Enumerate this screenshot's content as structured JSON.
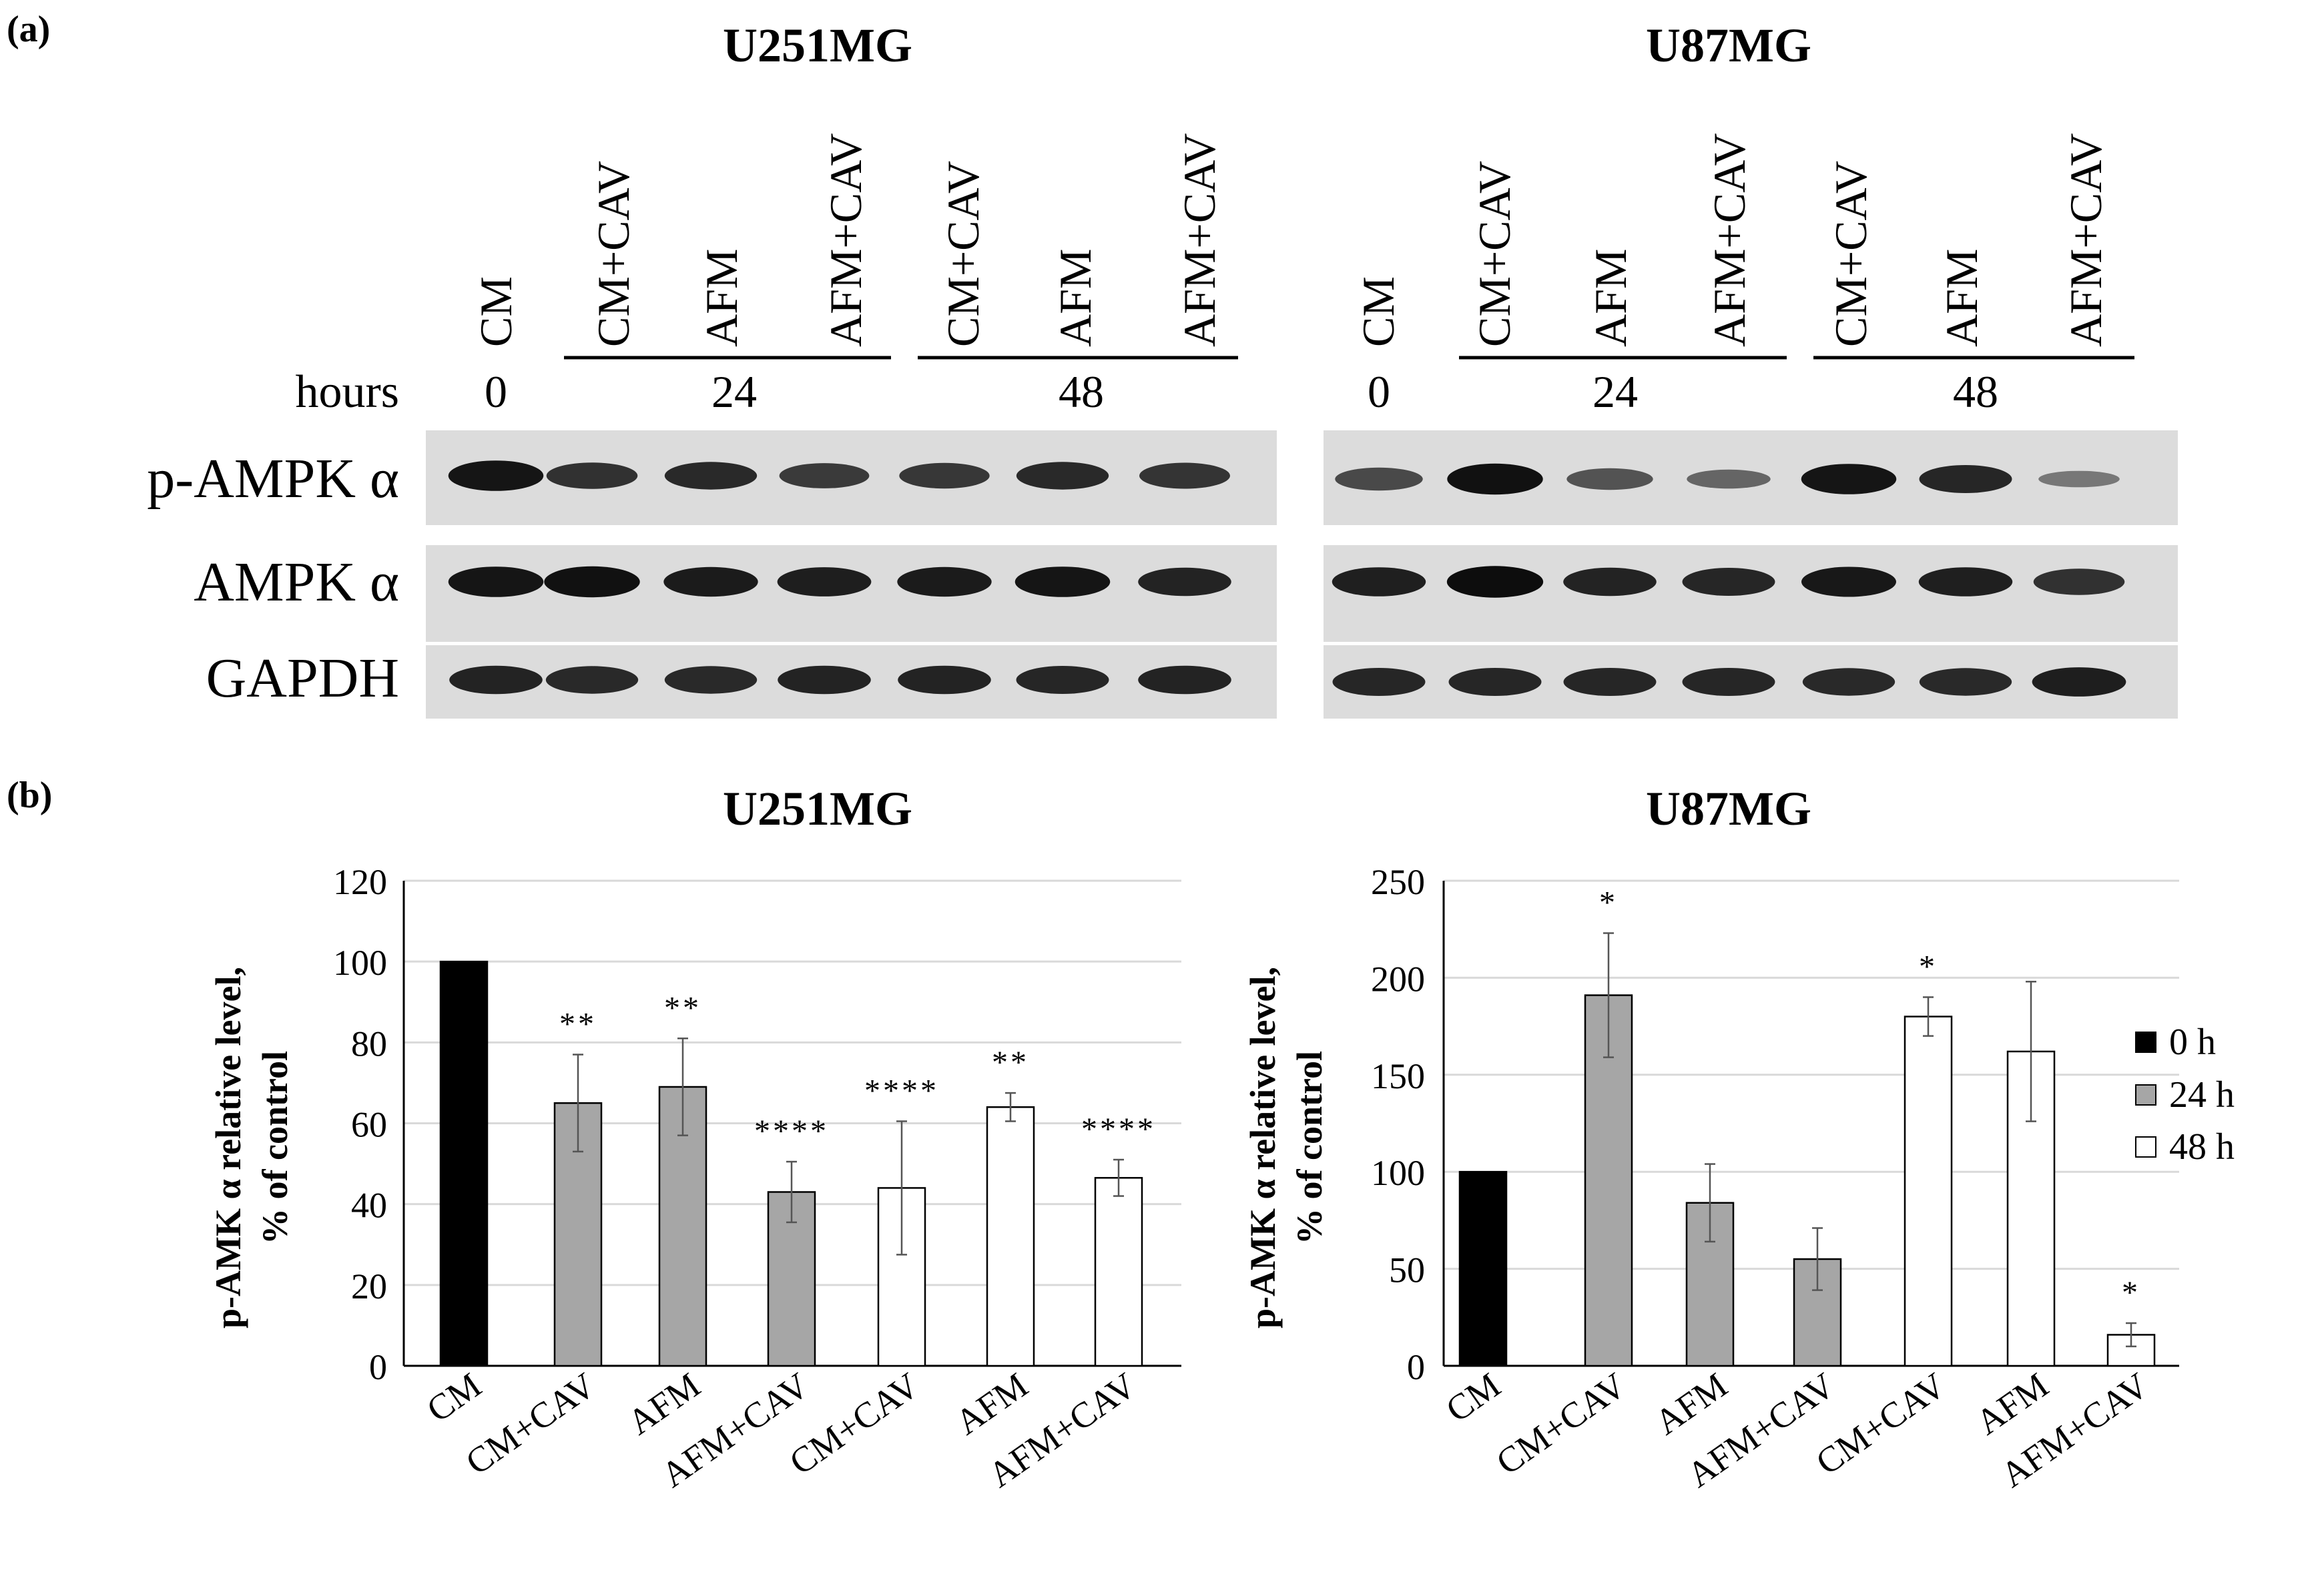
{
  "panel_a": {
    "label": "(a)",
    "row_labels": [
      "p-AMPK α",
      "AMPK α",
      "GAPDH"
    ],
    "hours_label": "hours",
    "blots": [
      {
        "title": "U251MG",
        "lanes": [
          "CM",
          "CM+CAV",
          "AFM",
          "AFM+CAV",
          "CM+CAV",
          "AFM",
          "AFM+CAV"
        ],
        "hours": [
          "0",
          "24",
          "48"
        ],
        "band_intensity": [
          [
            0.92,
            0.72,
            0.78,
            0.66,
            0.68,
            0.78,
            0.7
          ],
          [
            0.92,
            0.95,
            0.88,
            0.86,
            0.88,
            0.92,
            0.82
          ],
          [
            0.82,
            0.78,
            0.78,
            0.82,
            0.82,
            0.8,
            0.82
          ]
        ]
      },
      {
        "title": "U87MG",
        "lanes": [
          "CM",
          "CM+CAV",
          "AFM",
          "AFM+CAV",
          "CM+CAV",
          "AFM",
          "AFM+CAV"
        ],
        "hours": [
          "0",
          "24",
          "48"
        ],
        "band_intensity": [
          [
            0.55,
            0.95,
            0.48,
            0.35,
            0.92,
            0.8,
            0.22
          ],
          [
            0.85,
            0.98,
            0.82,
            0.8,
            0.9,
            0.85,
            0.72
          ],
          [
            0.8,
            0.8,
            0.8,
            0.8,
            0.78,
            0.78,
            0.86
          ]
        ]
      }
    ]
  },
  "panel_b": {
    "label": "(b)",
    "legend": [
      {
        "label": "0 h",
        "color": "#000000"
      },
      {
        "label": "24 h",
        "color": "#a6a6a6"
      },
      {
        "label": "48 h",
        "color": "#ffffff"
      }
    ]
  },
  "chart_data": [
    {
      "type": "bar",
      "title": "U251MG",
      "ylabel_line1": "p-AMK α relative level,",
      "ylabel_line2": "% of control",
      "categories": [
        "CM",
        "CM+CAV",
        "AFM",
        "AFM+CAV",
        "CM+CAV",
        "AFM",
        "AFM+CAV"
      ],
      "values": [
        100,
        65,
        69,
        43,
        44,
        64,
        46.5
      ],
      "errors": [
        0,
        12,
        12,
        7.5,
        16.5,
        3.5,
        4.5
      ],
      "time_group": [
        "0 h",
        "24 h",
        "24 h",
        "24 h",
        "48 h",
        "48 h",
        "48 h"
      ],
      "significance": [
        "",
        "**",
        "**",
        "****",
        "****",
        "**",
        "****"
      ],
      "ylim": [
        0,
        120
      ],
      "yticks": [
        0,
        20,
        40,
        60,
        80,
        100,
        120
      ],
      "grid": true
    },
    {
      "type": "bar",
      "title": "U87MG",
      "ylabel_line1": "p-AMK α relative level,",
      "ylabel_line2": "% of control",
      "categories": [
        "CM",
        "CM+CAV",
        "AFM",
        "AFM+CAV",
        "CM+CAV",
        "AFM",
        "AFM+CAV"
      ],
      "values": [
        100,
        191,
        84,
        55,
        180,
        162,
        16
      ],
      "errors": [
        0,
        32,
        20,
        16,
        10,
        36,
        6
      ],
      "time_group": [
        "0 h",
        "24 h",
        "24 h",
        "24 h",
        "48 h",
        "48 h",
        "48 h"
      ],
      "significance": [
        "",
        "*",
        "",
        "",
        "*",
        "",
        "*"
      ],
      "ylim": [
        0,
        250
      ],
      "yticks": [
        0,
        50,
        100,
        150,
        200,
        250
      ],
      "grid": true,
      "legend": "right"
    }
  ]
}
